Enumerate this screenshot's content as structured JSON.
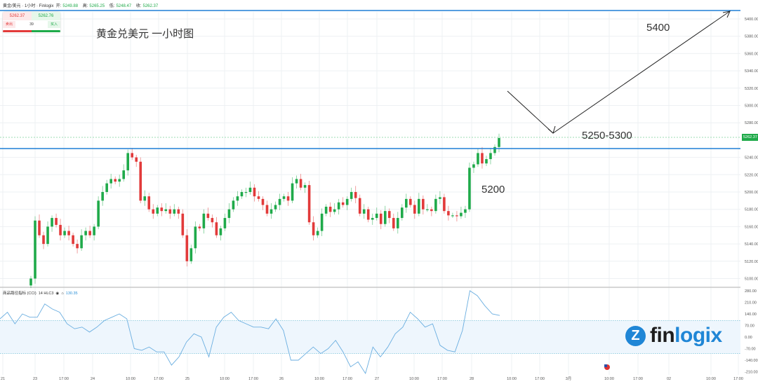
{
  "header": {
    "symbol": "黄金/美元 · 1小时 · Finlogix",
    "open_label": "开:",
    "open": "5249.88",
    "high_label": "高:",
    "high": "5265.25",
    "low_label": "低:",
    "low": "5248.47",
    "close_label": "收:",
    "close": "5262.37"
  },
  "trade_panel": {
    "sell_price": "5262.37",
    "buy_price": "5262.76",
    "sell_label": "卖出",
    "spread": "39",
    "buy_label": "买入"
  },
  "annotations": {
    "title": "黄金兑美元 一小时图",
    "target": "5400",
    "zone": "5250-5300",
    "support": "5200"
  },
  "current_price_tag": "5262.37",
  "indicator": {
    "name": "商品路径指标 (CCI)",
    "params": "14 HLC3",
    "eye_icon": "eye-icon",
    "settings_icon": "settings-icon",
    "value": "130.35"
  },
  "logo": {
    "mark": "Z",
    "text_dark": "fin",
    "text_blue": "logix"
  },
  "colors": {
    "up": "#1faa4a",
    "down": "#e23a3a",
    "line": "#1f7fd6",
    "cci": "#6aaee0"
  },
  "chart_data": {
    "type": "candlestick",
    "price_axis": [
      "5400.00",
      "5380.00",
      "5360.00",
      "5340.00",
      "5320.00",
      "5300.00",
      "5280.00",
      "5240.00",
      "5220.00",
      "5200.00",
      "5180.00",
      "5160.00",
      "5140.00",
      "5120.00",
      "5100.00"
    ],
    "cci_axis": [
      "280.00",
      "210.00",
      "140.00",
      "70.00",
      "0.00",
      "-70.00",
      "-140.00",
      "-210.00"
    ],
    "time_axis": [
      "21",
      "23",
      "17:00",
      "24",
      "10:00",
      "17:00",
      "25",
      "10:00",
      "17:00",
      "26",
      "10:00",
      "17:00",
      "27",
      "10:00",
      "17:00",
      "28",
      "10:00",
      "17:00",
      "3月",
      "10:00",
      "17:00",
      "02",
      "10:00",
      "17:00"
    ],
    "closes": [
      5100,
      5167,
      5150,
      5140,
      5160,
      5170,
      5162,
      5150,
      5155,
      5150,
      5140,
      5135,
      5150,
      5155,
      5150,
      5160,
      5190,
      5200,
      5210,
      5215,
      5212,
      5215,
      5225,
      5245,
      5240,
      5235,
      5190,
      5195,
      5180,
      5175,
      5182,
      5178,
      5180,
      5175,
      5180,
      5175,
      5150,
      5120,
      5135,
      5160,
      5158,
      5175,
      5170,
      5165,
      5150,
      5158,
      5170,
      5180,
      5190,
      5195,
      5200,
      5200,
      5205,
      5195,
      5192,
      5185,
      5175,
      5180,
      5185,
      5192,
      5195,
      5190,
      5210,
      5215,
      5205,
      5208,
      5165,
      5150,
      5155,
      5175,
      5183,
      5177,
      5180,
      5188,
      5185,
      5192,
      5200,
      5193,
      5175,
      5180,
      5168,
      5170,
      5175,
      5163,
      5178,
      5170,
      5158,
      5170,
      5182,
      5192,
      5185,
      5175,
      5192,
      5180,
      5180,
      5178,
      5192,
      5194,
      5178,
      5173,
      5173,
      5172,
      5176,
      5180,
      5228,
      5232,
      5245,
      5233,
      5238,
      5245,
      5252,
      5262.37
    ],
    "first_open": 5092,
    "cci": [
      110,
      150,
      80,
      140,
      120,
      120,
      200,
      170,
      150,
      80,
      50,
      60,
      30,
      60,
      100,
      120,
      140,
      110,
      -70,
      -80,
      -60,
      -90,
      -90,
      -170,
      -120,
      -30,
      20,
      0,
      -120,
      60,
      120,
      150,
      100,
      80,
      60,
      60,
      50,
      110,
      40,
      -140,
      -140,
      -100,
      -60,
      -100,
      -70,
      -20,
      -90,
      -180,
      -150,
      -220,
      -60,
      -120,
      -60,
      20,
      60,
      150,
      110,
      60,
      80,
      -50,
      -80,
      -90,
      40,
      280,
      250,
      190,
      140,
      130.35
    ],
    "cci_levels": [
      100,
      -100
    ],
    "resistance": 5400,
    "support_line": 5250,
    "ylim": [
      5090,
      5410
    ],
    "cci_ylim": [
      -220,
      290
    ]
  }
}
